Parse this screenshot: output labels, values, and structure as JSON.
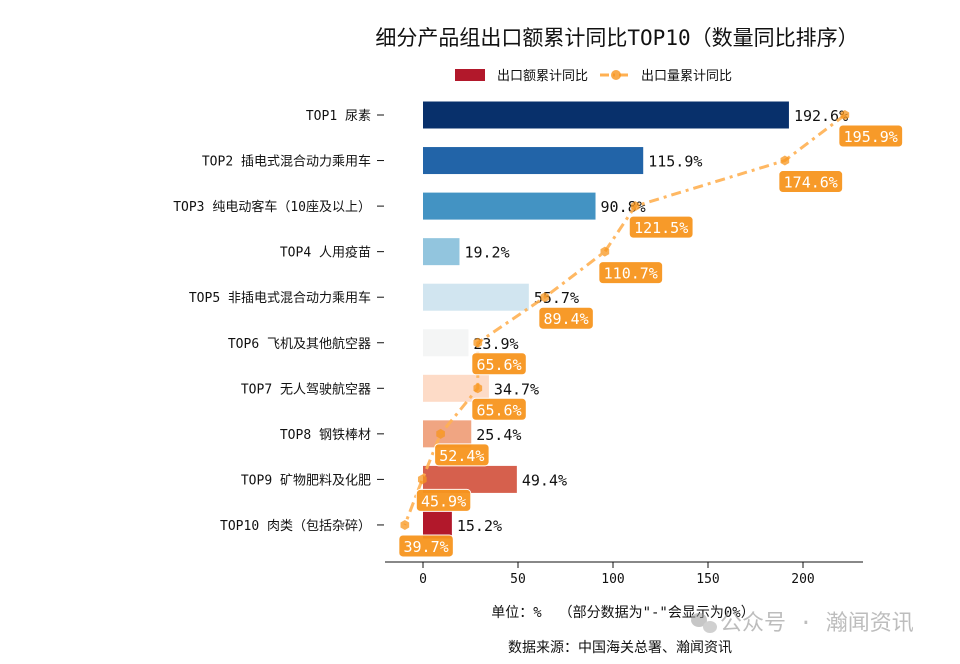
{
  "chart_data": {
    "type": "bar",
    "orientation": "horizontal",
    "title": "细分产品组出口额累计同比TOP10（数量同比排序）",
    "categories": [
      "TOP1 尿素",
      "TOP2 插电式混合动力乘用车",
      "TOP3 纯电动客车（10座及以上）",
      "TOP4 人用疫苗",
      "TOP5 非插电式混合动力乘用车",
      "TOP6 飞机及其他航空器",
      "TOP7 无人驾驶航空器",
      "TOP8 钢铁棒材",
      "TOP9 矿物肥料及化肥",
      "TOP10 肉类（包括杂碎）"
    ],
    "series": [
      {
        "name": "出口额累计同比",
        "type": "bar",
        "values": [
          192.6,
          115.9,
          90.8,
          19.2,
          55.7,
          23.9,
          34.7,
          25.4,
          49.4,
          15.2
        ],
        "labels": [
          "192.6%",
          "115.9%",
          "90.8%",
          "19.2%",
          "55.7%",
          "23.9%",
          "34.7%",
          "25.4%",
          "49.4%",
          "15.2%"
        ],
        "colors": [
          "#08306b",
          "#2264a8",
          "#4393c3",
          "#92c5de",
          "#d1e5f0",
          "#f4f5f5",
          "#fddbc7",
          "#f0a582",
          "#d6604d",
          "#b2182b"
        ]
      },
      {
        "name": "出口量累计同比",
        "type": "line",
        "style": "dash-dot",
        "marker": "hexagon",
        "color": "#ffb052",
        "label_color": "#f7951e",
        "values": [
          195.9,
          174.6,
          121.5,
          110.7,
          89.4,
          65.6,
          65.6,
          52.4,
          45.9,
          39.7
        ],
        "labels": [
          "195.9%",
          "174.6%",
          "121.5%",
          "110.7%",
          "89.4%",
          "65.6%",
          "65.6%",
          "52.4%",
          "45.9%",
          "39.7%"
        ]
      }
    ],
    "xticks": [
      0,
      50,
      100,
      150,
      200
    ],
    "xtick_labels": [
      "0",
      "50",
      "100",
      "150",
      "200"
    ],
    "xlim": [
      -10,
      232
    ],
    "xlabel": "单位：%  （部分数据为\"-\"会显示为0%）",
    "source": "数据来源：中国海关总署、瀚闻资讯",
    "legend_position": "top-center",
    "grid": false
  },
  "watermark": "公众号 · 瀚闻资讯"
}
